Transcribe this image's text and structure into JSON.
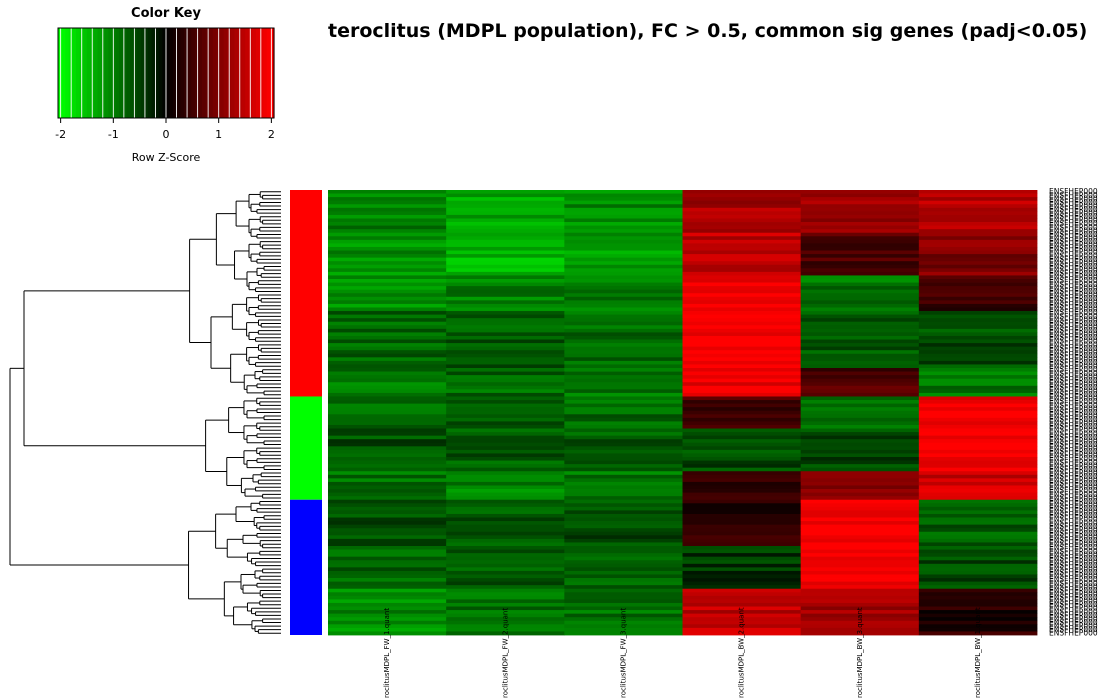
{
  "title": "teroclitus (MDPL population), FC > 0.5, common sig genes (padj<0.05)",
  "color_key": {
    "title": "Color Key",
    "xlabel": "Row Z-Score",
    "ticks": [
      "-2",
      "-1",
      "0",
      "1",
      "2"
    ],
    "tick_values": [
      -2,
      -1,
      0,
      1,
      2
    ],
    "range": [
      -2.05,
      2.05
    ],
    "breaks": [
      -2.0,
      -1.8,
      -1.6,
      -1.4,
      -1.2,
      -1.0,
      -0.8,
      -0.6,
      -0.4,
      -0.2,
      0.0,
      0.2,
      0.4,
      0.6,
      0.8,
      1.0,
      1.2,
      1.4,
      1.6,
      1.8,
      2.0
    ],
    "low_color": "#00ff00",
    "mid_color": "#000000",
    "high_color": "#ff0000"
  },
  "chart_data": {
    "type": "heatmap",
    "title": "teroclitus (MDPL population), FC > 0.5, common sig genes (padj<0.05)",
    "columns": [
      "roclitusMDPL_FW_1.quant",
      "roclitusMDPL_FW_2.quant",
      "roclitusMDPL_FW_3.quant",
      "roclitusMDPL_BW_2.quant",
      "roclitusMDPL_BW_3.quant",
      "roclitusMDPL_BW_1.quant"
    ],
    "row_label_prefix": "ENSFHEP000",
    "clusters": [
      {
        "color": "#ff0000",
        "rows": 58
      },
      {
        "color": "#00ff00",
        "rows": 29
      },
      {
        "color": "#0000ff",
        "rows": 38
      }
    ],
    "blocks": [
      {
        "rows": 12,
        "z": [
          -1.0,
          -1.3,
          -1.1,
          1.3,
          1.2,
          1.4
        ]
      },
      {
        "rows": 12,
        "z": [
          -1.1,
          -1.4,
          -1.2,
          1.5,
          0.6,
          1.0
        ]
      },
      {
        "rows": 10,
        "z": [
          -1.1,
          -1.0,
          -1.0,
          1.8,
          -0.9,
          0.5
        ]
      },
      {
        "rows": 16,
        "z": [
          -0.8,
          -0.7,
          -0.8,
          2.0,
          -0.7,
          -0.6
        ]
      },
      {
        "rows": 8,
        "z": [
          -0.9,
          -0.8,
          -0.9,
          1.9,
          0.6,
          -0.9
        ]
      },
      {
        "rows": 9,
        "z": [
          -0.8,
          -0.7,
          -0.8,
          0.5,
          -0.8,
          1.9
        ]
      },
      {
        "rows": 12,
        "z": [
          -0.6,
          -0.7,
          -0.7,
          -0.6,
          -0.5,
          2.0
        ]
      },
      {
        "rows": 8,
        "z": [
          -0.9,
          -1.0,
          -0.9,
          0.4,
          1.0,
          1.6
        ]
      },
      {
        "rows": 13,
        "z": [
          -0.6,
          -0.7,
          -0.6,
          0.3,
          2.0,
          -0.7
        ]
      },
      {
        "rows": 12,
        "z": [
          -0.8,
          -0.7,
          -0.8,
          -0.4,
          2.0,
          -0.6
        ]
      },
      {
        "rows": 13,
        "z": [
          -1.1,
          -0.9,
          -0.9,
          1.5,
          1.3,
          0.3
        ]
      }
    ]
  }
}
